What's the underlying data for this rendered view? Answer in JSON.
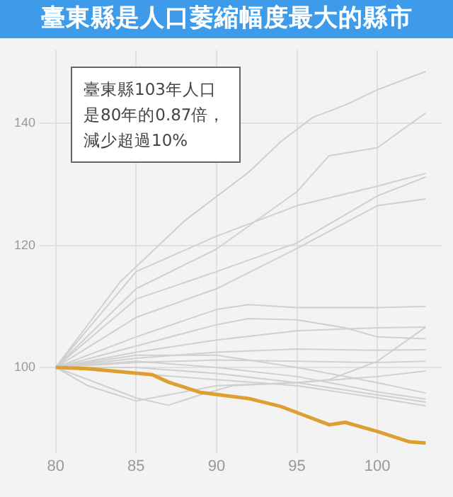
{
  "chart_data": {
    "type": "line",
    "title": "臺東縣是人口萎縮幅度最大的縣市",
    "annotations": [
      "臺東縣103年人口是80年的0.87倍，減少超過10%"
    ],
    "xlim": [
      79,
      104
    ],
    "xticks": [
      80,
      85,
      90,
      95,
      100
    ],
    "ylim": [
      86,
      152
    ],
    "yticks": [
      100,
      120,
      140
    ],
    "grid": true,
    "legend": false,
    "marker": "none",
    "line_style": "solid",
    "series": [
      {
        "color": "#d0d0d0",
        "x": [
          80,
          82,
          84,
          86,
          88,
          90,
          92,
          94,
          96,
          98,
          100,
          103
        ],
        "values": [
          100,
          107,
          114,
          119,
          124,
          128,
          132,
          137,
          141,
          143,
          145.5,
          148.5
        ]
      },
      {
        "color": "#d0d0d0",
        "x": [
          80,
          85,
          90,
          95,
          97,
          100,
          103
        ],
        "values": [
          100,
          112.9,
          119.4,
          128.8,
          134.7,
          136,
          141.7
        ]
      },
      {
        "color": "#d0d0d0",
        "x": [
          80,
          85,
          90,
          95,
          100,
          103
        ],
        "values": [
          100,
          115.7,
          121.5,
          126.5,
          129.7,
          131.8
        ]
      },
      {
        "color": "#d0d0d0",
        "x": [
          80,
          85,
          90,
          95,
          100,
          103
        ],
        "values": [
          100,
          111.2,
          115.7,
          120.4,
          128.1,
          131.2
        ]
      },
      {
        "color": "#d0d0d0",
        "x": [
          80,
          85,
          90,
          95,
          100,
          103
        ],
        "values": [
          100,
          108.2,
          112.9,
          119.5,
          126.5,
          127.6
        ]
      },
      {
        "color": "#d0d0d0",
        "x": [
          80,
          85,
          90,
          92,
          95,
          100,
          103
        ],
        "values": [
          100,
          105,
          109.5,
          110.3,
          109.8,
          109.8,
          110
        ]
      },
      {
        "color": "#d0d0d0",
        "x": [
          80,
          85,
          90,
          92,
          95,
          98,
          100,
          103
        ],
        "values": [
          100,
          103.5,
          107,
          108,
          107.8,
          106.5,
          105,
          104.7
        ]
      },
      {
        "color": "#d0d0d0",
        "x": [
          80,
          85,
          90,
          95,
          100,
          103
        ],
        "values": [
          100,
          102.5,
          104.5,
          106,
          106.5,
          106.6
        ]
      },
      {
        "color": "#d0d0d0",
        "x": [
          80,
          85,
          90,
          95,
          100,
          103
        ],
        "values": [
          100,
          101.5,
          102.5,
          103,
          102.8,
          102.9
        ]
      },
      {
        "color": "#d0d0d0",
        "x": [
          80,
          85,
          90,
          95,
          100,
          103
        ],
        "values": [
          100,
          100.8,
          101.2,
          101,
          100.8,
          101
        ]
      },
      {
        "color": "#d0d0d0",
        "x": [
          80,
          82,
          85,
          88,
          90,
          95,
          97,
          100,
          103
        ],
        "values": [
          100,
          97,
          94.5,
          96,
          97,
          97.5,
          98,
          101,
          106.6
        ]
      },
      {
        "color": "#d0d0d0",
        "x": [
          80,
          83,
          85,
          87,
          89,
          91,
          95,
          100,
          103
        ],
        "values": [
          100,
          97,
          95,
          93.8,
          95.5,
          97,
          97.5,
          98.5,
          99.4
        ]
      },
      {
        "color": "#d0d0d0",
        "x": [
          80,
          85,
          90,
          95,
          100,
          103
        ],
        "values": [
          100,
          101,
          100,
          98.5,
          96,
          94.8
        ]
      },
      {
        "color": "#d0d0d0",
        "x": [
          80,
          85,
          90,
          95,
          100,
          103
        ],
        "values": [
          100,
          100,
          99,
          97.5,
          95.5,
          94.3
        ]
      },
      {
        "color": "#d0d0d0",
        "x": [
          80,
          85,
          90,
          95,
          100,
          103
        ],
        "values": [
          100,
          99,
          98,
          97,
          95,
          93.7
        ]
      },
      {
        "color": "#d0d0d0",
        "x": [
          80,
          85,
          90,
          95,
          100,
          103
        ],
        "values": [
          100,
          102,
          102,
          100,
          97.5,
          95.8
        ]
      },
      {
        "color": "#dda030",
        "x": [
          80,
          82,
          84,
          86,
          87,
          89,
          92,
          94,
          95,
          97,
          98,
          100,
          102,
          103
        ],
        "values": [
          100,
          99.8,
          99.3,
          98.8,
          97.6,
          95.9,
          94.9,
          93.6,
          92.6,
          90.6,
          91,
          89.5,
          87.8,
          87.6
        ]
      }
    ]
  }
}
